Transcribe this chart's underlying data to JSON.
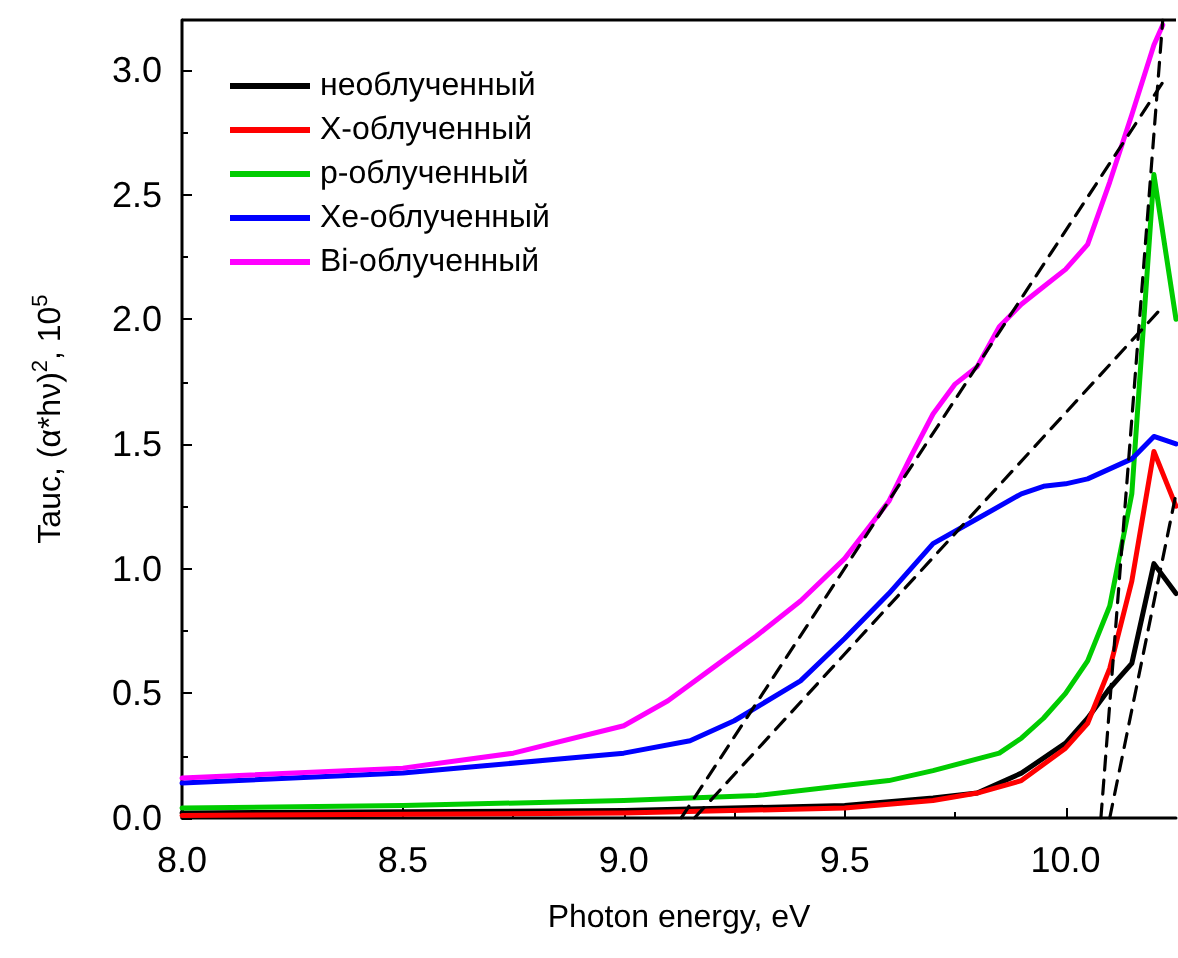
{
  "chart_data": {
    "type": "line",
    "xlabel": "Photon energy, eV",
    "ylabel": "Tauc, (α*hν)$^{2}$, 10$^{5}$",
    "xlim": [
      8.0,
      10.25
    ],
    "xticks": [
      {
        "value": 8.0,
        "label": "8.0"
      },
      {
        "value": 8.5,
        "label": "8.5"
      },
      {
        "value": 9.0,
        "label": "9.0"
      },
      {
        "value": 9.5,
        "label": "9.5"
      },
      {
        "value": 10.0,
        "label": "10.0"
      }
    ],
    "ylim": [
      0,
      3.2
    ],
    "yticks": [
      {
        "value": 0,
        "label": "0.0"
      },
      {
        "value": 0.5,
        "label": "0.5"
      },
      {
        "value": 1.0,
        "label": "1.0"
      },
      {
        "value": 1.5,
        "label": "1.5"
      },
      {
        "value": 2.0,
        "label": "2.0"
      },
      {
        "value": 2.5,
        "label": "2.5"
      },
      {
        "value": 3.0,
        "label": "3.0"
      }
    ],
    "grid": false,
    "legend": "top left",
    "marker": "none",
    "line_style": "solid",
    "series": [
      {
        "name": "необлученный",
        "color": "#000000",
        "x": [
          8.0,
          9.0,
          9.5,
          9.7,
          9.8,
          9.9,
          10.0,
          10.05,
          10.1,
          10.15,
          10.2,
          10.25
        ],
        "values": [
          0.02,
          0.03,
          0.05,
          0.08,
          0.1,
          0.18,
          0.3,
          0.4,
          0.52,
          0.62,
          1.02,
          0.9
        ]
      },
      {
        "name": "X-облученный",
        "color": "#ff0000",
        "x": [
          8.0,
          9.0,
          9.5,
          9.7,
          9.8,
          9.9,
          10.0,
          10.05,
          10.1,
          10.15,
          10.2,
          10.25
        ],
        "values": [
          0.01,
          0.02,
          0.04,
          0.07,
          0.1,
          0.15,
          0.28,
          0.38,
          0.6,
          0.95,
          1.47,
          1.25
        ]
      },
      {
        "name": "p-облученный",
        "color": "#00cc00",
        "x": [
          8.0,
          8.5,
          9.0,
          9.3,
          9.5,
          9.6,
          9.7,
          9.85,
          9.9,
          9.95,
          10.0,
          10.05,
          10.1,
          10.15,
          10.2,
          10.25
        ],
        "values": [
          0.04,
          0.05,
          0.07,
          0.09,
          0.13,
          0.15,
          0.19,
          0.26,
          0.32,
          0.4,
          0.5,
          0.63,
          0.85,
          1.3,
          2.58,
          2.0
        ]
      },
      {
        "name": "Xe-облученный",
        "color": "#0000ff",
        "x": [
          8.0,
          8.5,
          9.0,
          9.15,
          9.25,
          9.4,
          9.5,
          9.6,
          9.7,
          9.8,
          9.9,
          9.95,
          10.0,
          10.05,
          10.15,
          10.2,
          10.25
        ],
        "values": [
          0.14,
          0.18,
          0.26,
          0.31,
          0.39,
          0.55,
          0.72,
          0.9,
          1.1,
          1.2,
          1.3,
          1.33,
          1.34,
          1.36,
          1.44,
          1.53,
          1.5
        ]
      },
      {
        "name": "Bi-облученный",
        "color": "#ff00ff",
        "x": [
          8.0,
          8.5,
          8.75,
          9.0,
          9.1,
          9.2,
          9.3,
          9.4,
          9.5,
          9.6,
          9.65,
          9.7,
          9.75,
          9.8,
          9.85,
          9.9,
          9.95,
          10.0,
          10.05,
          10.1,
          10.15,
          10.2,
          10.22
        ],
        "values": [
          0.16,
          0.2,
          0.26,
          0.37,
          0.47,
          0.6,
          0.73,
          0.87,
          1.04,
          1.27,
          1.45,
          1.62,
          1.74,
          1.81,
          1.97,
          2.06,
          2.13,
          2.2,
          2.3,
          2.55,
          2.82,
          3.1,
          3.18
        ]
      },
      {
        "type": "line",
        "color": "#000000",
        "line_style": "dashed",
        "x": [
          9.13,
          10.22
        ],
        "values": [
          0,
          2.95
        ]
      },
      {
        "type": "line",
        "color": "#000000",
        "line_style": "dashed",
        "x": [
          9.16,
          10.22
        ],
        "values": [
          0,
          2.05
        ]
      },
      {
        "type": "line",
        "color": "#000000",
        "line_style": "dashed",
        "x": [
          10.08,
          10.22
        ],
        "values": [
          0,
          3.2
        ]
      },
      {
        "type": "line",
        "color": "#000000",
        "line_style": "dashed",
        "x": [
          10.1,
          10.25
        ],
        "values": [
          0,
          1.3
        ]
      }
    ]
  }
}
